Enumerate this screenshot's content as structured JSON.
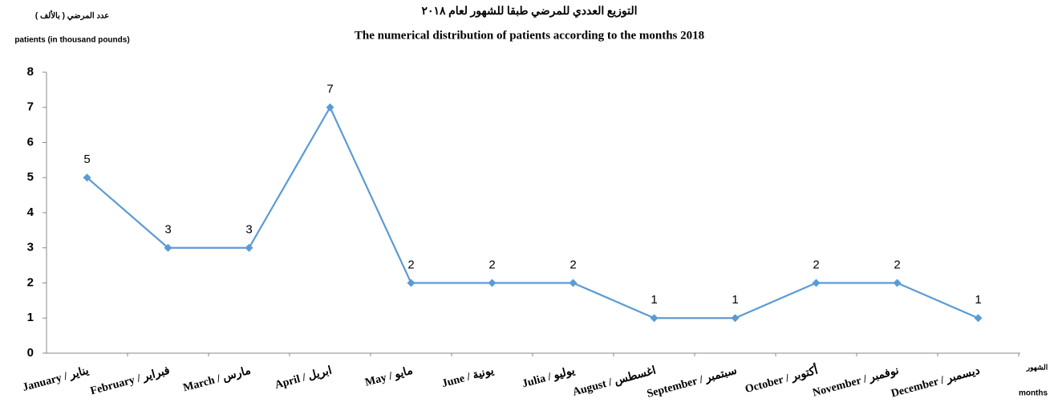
{
  "chart_data": {
    "type": "line",
    "title": "التوزيع العددي للمرضي طبقا للشهور لعام ٢٠١٨",
    "subtitle": "The numerical distribution of patients according to the months 2018",
    "y_label": "( عدد المرضي ( بالألف",
    "y_label_en": "patients (in thousand pounds)",
    "x_label": "الشهور",
    "x_label_en": "months",
    "categories": [
      "January / يناير",
      "February / فبراير",
      "March / مارس",
      "April / ابريل",
      "May / مايو",
      "June / يونية",
      "Julia / يوليو",
      "August / اغسطس",
      "September / سبتمبر",
      "October / أكتوبر",
      "November / نوفمبر",
      "December / ديسمبر"
    ],
    "series": [
      {
        "name": "patients",
        "color": "#5b9bd5",
        "values": [
          5,
          3,
          3,
          7,
          2,
          2,
          2,
          1,
          1,
          2,
          2,
          1
        ]
      }
    ],
    "ylim": [
      0,
      8
    ],
    "yticks": [
      0,
      1,
      2,
      3,
      4,
      5,
      6,
      7,
      8
    ],
    "grid": false
  }
}
